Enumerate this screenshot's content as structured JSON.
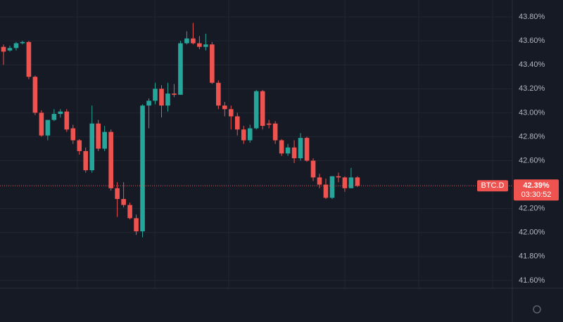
{
  "chart_data": {
    "type": "candlestick",
    "open": [
      43.55,
      43.52,
      43.54,
      43.58,
      43.59,
      43.3,
      43.0,
      42.81,
      42.94,
      42.99,
      43.01,
      42.87,
      42.77,
      42.68,
      42.52,
      42.91,
      42.7,
      42.84,
      42.37,
      42.28,
      42.23,
      42.12,
      42.01,
      43.06,
      43.1,
      43.2,
      43.06,
      43.16,
      43.15,
      43.58,
      43.62,
      43.58,
      43.55,
      43.57,
      43.25,
      43.06,
      43.03,
      42.97,
      42.86,
      42.77,
      42.87,
      43.18,
      42.91,
      42.91,
      42.77,
      42.66,
      42.71,
      42.62,
      42.79,
      42.6,
      42.46,
      42.4,
      42.29,
      42.47,
      42.46,
      42.37,
      42.46
    ],
    "high": [
      43.57,
      43.56,
      43.59,
      43.6,
      43.6,
      43.31,
      43.02,
      42.94,
      43.03,
      43.03,
      43.03,
      42.9,
      42.78,
      42.71,
      43.06,
      42.94,
      42.89,
      42.86,
      42.42,
      42.42,
      42.25,
      42.15,
      43.07,
      43.12,
      43.25,
      43.23,
      43.25,
      43.24,
      43.6,
      43.68,
      43.75,
      43.64,
      43.66,
      43.59,
      43.27,
      43.09,
      43.06,
      43.0,
      42.89,
      42.9,
      43.19,
      43.19,
      42.94,
      42.93,
      42.78,
      42.74,
      42.77,
      42.83,
      42.8,
      42.62,
      42.49,
      42.45,
      42.47,
      42.5,
      42.47,
      42.54,
      42.47
    ],
    "low": [
      43.4,
      43.51,
      43.52,
      43.57,
      43.28,
      42.98,
      42.8,
      42.77,
      42.93,
      42.96,
      42.84,
      42.74,
      42.65,
      42.5,
      42.5,
      42.68,
      42.68,
      42.35,
      42.13,
      42.21,
      42.11,
      41.98,
      41.96,
      42.87,
      43.07,
      42.96,
      43.01,
      43.13,
      43.15,
      43.57,
      43.57,
      43.53,
      43.52,
      43.24,
      43.03,
      42.97,
      42.86,
      42.81,
      42.74,
      42.75,
      42.86,
      42.86,
      42.87,
      42.74,
      42.64,
      42.64,
      42.58,
      42.6,
      42.59,
      42.43,
      42.37,
      42.28,
      42.28,
      42.42,
      42.34,
      42.37,
      42.38
    ],
    "close": [
      43.51,
      43.54,
      43.58,
      43.59,
      43.3,
      43.0,
      42.81,
      42.94,
      42.99,
      43.01,
      42.86,
      42.77,
      42.68,
      42.52,
      42.91,
      42.7,
      42.84,
      42.37,
      42.28,
      42.23,
      42.12,
      42.01,
      43.06,
      43.1,
      43.2,
      43.06,
      43.16,
      43.15,
      43.58,
      43.62,
      43.58,
      43.55,
      43.57,
      43.25,
      43.06,
      43.03,
      42.97,
      42.86,
      42.77,
      42.87,
      43.18,
      42.89,
      42.9,
      42.77,
      42.66,
      42.71,
      42.62,
      42.79,
      42.6,
      42.46,
      42.4,
      42.29,
      42.47,
      42.46,
      42.37,
      42.46,
      42.39
    ],
    "up_color": "#26a69a",
    "down_color": "#ef5350",
    "ylim": [
      41.535,
      43.941
    ],
    "yticks": [
      {
        "value": 41.6,
        "label": "41.60%"
      },
      {
        "value": 41.8,
        "label": "41.80%"
      },
      {
        "value": 42.0,
        "label": "42.00%"
      },
      {
        "value": 42.2,
        "label": "42.20%"
      },
      {
        "value": 42.6,
        "label": "42.60%"
      },
      {
        "value": 42.8,
        "label": "42.80%"
      },
      {
        "value": 43.0,
        "label": "43.00%"
      },
      {
        "value": 43.2,
        "label": "43.20%"
      },
      {
        "value": 43.4,
        "label": "43.40%"
      },
      {
        "value": 43.6,
        "label": "43.60%"
      },
      {
        "value": 43.8,
        "label": "43.80%"
      }
    ],
    "grid": true,
    "symbol": "BTC.D",
    "last_price": {
      "value": 42.39,
      "label": "42.39%"
    },
    "countdown": "03:30:52"
  }
}
